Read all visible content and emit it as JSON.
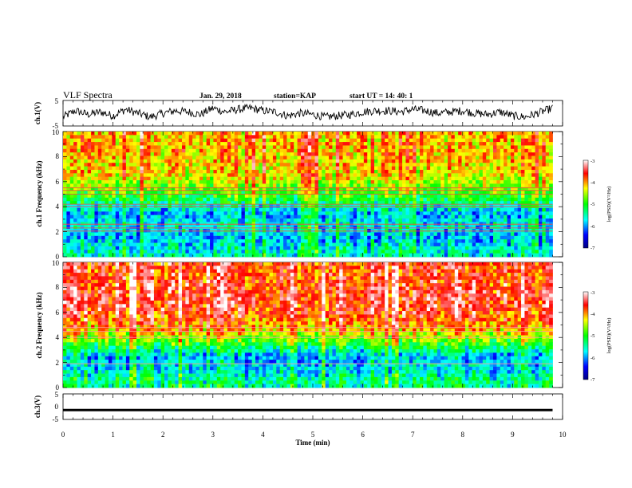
{
  "header": {
    "title": "VLF Spectra",
    "date": "Jan. 29, 2018",
    "station": "station=KAP",
    "start": "start UT =  14: 40: 1"
  },
  "chart_data": [
    {
      "type": "line",
      "panel": "ch1-waveform",
      "ylabel": "ch.1(V)",
      "ylim": [
        -5,
        5
      ],
      "yticks": [
        "5",
        "-5"
      ],
      "xlim": [
        0,
        10
      ],
      "series": [
        {
          "color": "#000000",
          "x": [
            0,
            0.25,
            0.5,
            0.75,
            1,
            1.25,
            1.5,
            1.75,
            2,
            2.25,
            2.5,
            2.75,
            3,
            3.25,
            3.5,
            3.75,
            4,
            4.25,
            4.5,
            4.75,
            5,
            5.25,
            5.5,
            5.75,
            6,
            6.25,
            6.5,
            6.75,
            7,
            7.25,
            7.5,
            7.75,
            8,
            8.25,
            8.5,
            8.75,
            9,
            9.25,
            9.5,
            9.8
          ],
          "values": [
            -1.5,
            1,
            -0.5,
            0.5,
            -1,
            1.5,
            0,
            -1.5,
            0,
            1,
            0.5,
            -0.5,
            2,
            0.5,
            1.5,
            2,
            1,
            0.5,
            -1,
            0,
            -0.5,
            -1.5,
            -1,
            -0.5,
            0.5,
            1,
            1,
            0.5,
            1.5,
            1,
            0,
            0.5,
            1,
            0,
            -0.5,
            0.5,
            -1,
            -1.5,
            0,
            2
          ]
        }
      ]
    },
    {
      "type": "heatmap",
      "panel": "ch1-spectrogram",
      "ylabel": "ch.1 Frequency (kHz)",
      "xlim": [
        0,
        10
      ],
      "ylim": [
        0,
        10
      ],
      "yticks": [
        "0",
        "2",
        "4",
        "6",
        "8",
        "10"
      ],
      "profile_khz": [
        0.5,
        1.5,
        2.5,
        3.5,
        4.5,
        5.5,
        6.5,
        7.5,
        8.5,
        9.5
      ],
      "profile_log_psd": [
        -5.6,
        -5.9,
        -5.7,
        -5.9,
        -5.2,
        -4.7,
        -4.3,
        -4.2,
        -4.1,
        -4.1
      ],
      "lines_khz": [
        2.05,
        2.3,
        2.6,
        4.0,
        4.2,
        5.0,
        5.3,
        5.5
      ],
      "line_color": "#ff4040",
      "colorbar": {
        "label": "log(PSD)(V²/Hz)",
        "range": [
          -7,
          -3
        ],
        "ticks": [
          "-3",
          "-4",
          "-5",
          "-6",
          "-7"
        ]
      }
    },
    {
      "type": "heatmap",
      "panel": "ch2-spectrogram",
      "ylabel": "ch.2 Frequency (kHz)",
      "xlim": [
        0,
        10
      ],
      "ylim": [
        0,
        10
      ],
      "yticks": [
        "0",
        "2",
        "4",
        "6",
        "8",
        "10"
      ],
      "profile_khz": [
        0.5,
        1.5,
        2.5,
        3.5,
        4.5,
        5.5,
        6.5,
        7.5,
        8.5,
        9.5
      ],
      "profile_log_psd": [
        -5.4,
        -5.8,
        -5.9,
        -5.0,
        -4.2,
        -3.8,
        -3.6,
        -3.6,
        -3.7,
        -3.7
      ],
      "lines_khz": [
        1.9,
        4.0,
        4.5,
        4.8
      ],
      "line_color": "#ff9e9e",
      "colorbar": {
        "label": "log(PSD)(V²/Hz)",
        "range": [
          -7,
          -3
        ],
        "ticks": [
          "-3",
          "-4",
          "-5",
          "-6",
          "-7"
        ]
      }
    },
    {
      "type": "line",
      "panel": "ch3-waveform",
      "ylabel": "ch.3(V)",
      "ylim": [
        -5,
        5
      ],
      "yticks": [
        "5",
        "0",
        "-5"
      ],
      "xlim": [
        0,
        10
      ],
      "xlabel": "Time (min)",
      "xticks": [
        "0",
        "1",
        "2",
        "3",
        "4",
        "5",
        "6",
        "7",
        "8",
        "9",
        "10"
      ],
      "series": [
        {
          "color": "#000000",
          "x": [
            0,
            9.8
          ],
          "values": [
            -1.3,
            -1.3
          ]
        }
      ]
    }
  ]
}
